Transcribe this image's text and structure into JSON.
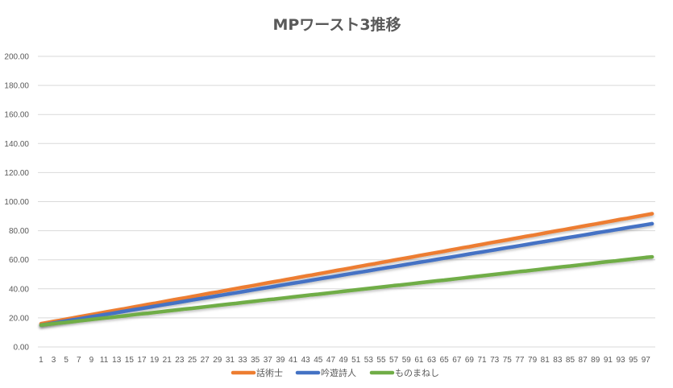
{
  "chart_data": {
    "type": "line",
    "title": "MPワースト3推移",
    "xlabel": "",
    "ylabel": "",
    "x_range": [
      1,
      98
    ],
    "x_tick_labels": [
      "1",
      "3",
      "5",
      "7",
      "9",
      "11",
      "13",
      "15",
      "17",
      "19",
      "21",
      "23",
      "25",
      "27",
      "29",
      "31",
      "33",
      "35",
      "37",
      "39",
      "41",
      "43",
      "45",
      "47",
      "49",
      "51",
      "53",
      "55",
      "57",
      "59",
      "61",
      "63",
      "65",
      "67",
      "69",
      "71",
      "73",
      "75",
      "77",
      "79",
      "81",
      "83",
      "85",
      "87",
      "89",
      "91",
      "93",
      "95",
      "97"
    ],
    "ylim": [
      0,
      200
    ],
    "y_tick_labels": [
      "0.00",
      "20.00",
      "40.00",
      "60.00",
      "80.00",
      "100.00",
      "120.00",
      "140.00",
      "160.00",
      "180.00",
      "200.00"
    ],
    "grid": true,
    "legend_position": "bottom",
    "series": [
      {
        "name": "話術士",
        "color": "#ED7D31",
        "values": [
          16.0,
          16.8,
          17.6,
          18.3,
          19.1,
          19.9,
          20.7,
          21.5,
          22.2,
          23.0,
          23.8,
          24.6,
          25.4,
          26.1,
          26.9,
          27.7,
          28.5,
          29.3,
          30.0,
          30.8,
          31.6,
          32.4,
          33.2,
          33.9,
          34.7,
          35.5,
          36.3,
          37.1,
          37.8,
          38.6,
          39.4,
          40.2,
          41.0,
          41.7,
          42.5,
          43.3,
          44.1,
          44.9,
          45.6,
          46.4,
          47.2,
          48.0,
          48.8,
          49.5,
          50.3,
          51.1,
          51.9,
          52.7,
          53.4,
          54.2,
          55.0,
          55.8,
          56.6,
          57.3,
          58.1,
          58.9,
          59.7,
          60.5,
          61.2,
          62.0,
          62.8,
          63.6,
          64.4,
          65.1,
          65.9,
          66.7,
          67.5,
          68.3,
          69.0,
          69.8,
          70.6,
          71.4,
          72.2,
          72.9,
          73.7,
          74.5,
          75.3,
          76.1,
          76.8,
          77.6,
          78.4,
          79.2,
          80.0,
          80.7,
          81.5,
          82.3,
          83.1,
          83.9,
          84.6,
          85.4,
          86.2,
          87.0,
          87.8,
          88.5,
          89.3,
          90.1,
          90.9,
          91.7
        ]
      },
      {
        "name": "吟遊詩人",
        "color": "#4472C4",
        "values": [
          15.0,
          15.7,
          16.4,
          17.2,
          17.9,
          18.6,
          19.3,
          20.0,
          20.8,
          21.5,
          22.2,
          22.9,
          23.6,
          24.4,
          25.1,
          25.8,
          26.5,
          27.2,
          28.0,
          28.7,
          29.4,
          30.1,
          30.8,
          31.6,
          32.3,
          33.0,
          33.7,
          34.4,
          35.2,
          35.9,
          36.6,
          37.3,
          38.0,
          38.8,
          39.5,
          40.2,
          40.9,
          41.6,
          42.4,
          43.1,
          43.8,
          44.5,
          45.2,
          46.0,
          46.7,
          47.4,
          48.1,
          48.8,
          49.6,
          50.3,
          51.0,
          51.7,
          52.4,
          53.2,
          53.9,
          54.6,
          55.3,
          56.0,
          56.8,
          57.5,
          58.2,
          58.9,
          59.6,
          60.4,
          61.1,
          61.8,
          62.5,
          63.2,
          64.0,
          64.7,
          65.4,
          66.1,
          66.8,
          67.6,
          68.3,
          69.0,
          69.7,
          70.4,
          71.2,
          71.9,
          72.6,
          73.3,
          74.0,
          74.8,
          75.5,
          76.2,
          76.9,
          77.6,
          78.4,
          79.1,
          79.8,
          80.5,
          81.2,
          82.0,
          82.7,
          83.4,
          84.1,
          84.8
        ]
      },
      {
        "name": "ものまねし",
        "color": "#70AD47",
        "values": [
          15.0,
          15.5,
          16.0,
          16.5,
          16.9,
          17.4,
          17.9,
          18.4,
          18.9,
          19.4,
          19.9,
          20.3,
          20.8,
          21.3,
          21.8,
          22.3,
          22.8,
          23.2,
          23.7,
          24.2,
          24.7,
          25.2,
          25.7,
          26.2,
          26.6,
          27.1,
          27.6,
          28.1,
          28.6,
          29.1,
          29.6,
          30.0,
          30.5,
          31.0,
          31.5,
          32.0,
          32.5,
          32.9,
          33.4,
          33.9,
          34.4,
          34.9,
          35.4,
          35.9,
          36.3,
          36.8,
          37.3,
          37.8,
          38.3,
          38.8,
          39.3,
          39.7,
          40.2,
          40.7,
          41.2,
          41.7,
          42.2,
          42.6,
          43.1,
          43.6,
          44.1,
          44.6,
          45.1,
          45.6,
          46.0,
          46.5,
          47.0,
          47.5,
          48.0,
          48.5,
          49.0,
          49.4,
          49.9,
          50.4,
          50.9,
          51.4,
          51.9,
          52.3,
          52.8,
          53.3,
          53.8,
          54.3,
          54.8,
          55.3,
          55.7,
          56.2,
          56.7,
          57.2,
          57.7,
          58.2,
          58.7,
          59.1,
          59.6,
          60.1,
          60.6,
          61.1,
          61.6,
          62.0
        ]
      }
    ]
  }
}
